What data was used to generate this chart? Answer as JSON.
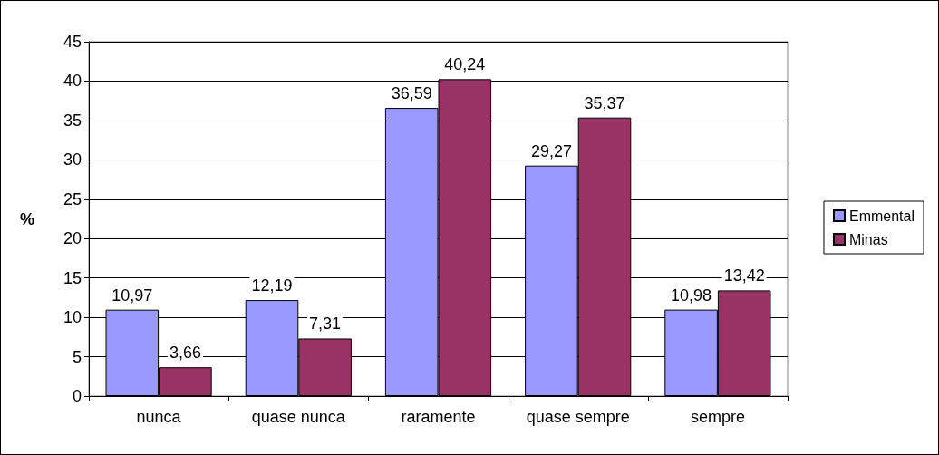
{
  "chart_data": {
    "type": "bar",
    "ylabel": "%",
    "categories": [
      "nunca",
      "quase nunca",
      "raramente",
      "quase sempre",
      "sempre"
    ],
    "series": [
      {
        "name": "Emmental",
        "color": "#9999ff",
        "values": [
          10.97,
          12.19,
          36.59,
          29.27,
          10.98
        ],
        "value_labels": [
          "10,97",
          "12,19",
          "36,59",
          "29,27",
          "10,98"
        ]
      },
      {
        "name": "Minas",
        "color": "#993366",
        "values": [
          3.66,
          7.31,
          40.24,
          35.37,
          13.42
        ],
        "value_labels": [
          "3,66",
          "7,31",
          "40,24",
          "35,37",
          "13,42"
        ]
      }
    ],
    "ylim": [
      0,
      45
    ],
    "yticks": [
      0,
      5,
      10,
      15,
      20,
      25,
      30,
      35,
      40,
      45
    ],
    "grid": "y",
    "legend": "right"
  }
}
